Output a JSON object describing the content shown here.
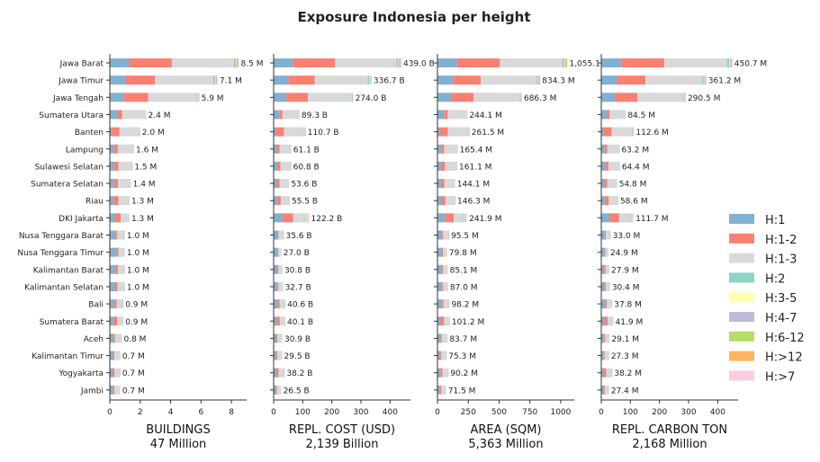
{
  "chart_data": {
    "type": "bar",
    "orientation": "horizontal",
    "stacked": true,
    "title": "Exposure Indonesia per height",
    "categories": [
      "Jawa Barat",
      "Jawa Timur",
      "Jawa Tengah",
      "Sumatera Utara",
      "Banten",
      "Lampung",
      "Sulawesi Selatan",
      "Sumatera Selatan",
      "Riau",
      "DKI Jakarta",
      "Nusa Tenggara Barat",
      "Nusa Tenggara Timur",
      "Kalimantan Barat",
      "Kalimantan Selatan",
      "Bali",
      "Sumatera Barat",
      "Aceh",
      "Kalimantan Timur",
      "Yogyakarta",
      "Jambi"
    ],
    "legend": {
      "placement": "right",
      "items": [
        {
          "label": "H:1",
          "color": "#80b1d3"
        },
        {
          "label": "H:1-2",
          "color": "#fb8072"
        },
        {
          "label": "H:1-3",
          "color": "#d9d9d9"
        },
        {
          "label": "H:2",
          "color": "#8dd3c7"
        },
        {
          "label": "H:3-5",
          "color": "#ffffb3"
        },
        {
          "label": "H:4-7",
          "color": "#bebada"
        },
        {
          "label": "H:6-12",
          "color": "#b3de69"
        },
        {
          "label": "H:>12",
          "color": "#fdb462"
        },
        {
          "label": "H:>7",
          "color": "#fccde5"
        }
      ]
    },
    "panels": [
      {
        "xlabel": "BUILDINGS",
        "subtitle": "47 Million",
        "xlim": [
          0,
          9
        ],
        "ticks": [
          0,
          2,
          4,
          6,
          8
        ],
        "totals": [
          8.5,
          7.1,
          5.9,
          2.4,
          2.0,
          1.6,
          1.5,
          1.4,
          1.3,
          1.3,
          1.0,
          1.0,
          1.0,
          1.0,
          0.9,
          0.9,
          0.8,
          0.7,
          0.7,
          0.7
        ],
        "total_labels": [
          "8.5 M",
          "7.1 M",
          "5.9 M",
          "2.4 M",
          "2.0 M",
          "1.6 M",
          "1.5 M",
          "1.4 M",
          "1.3 M",
          "1.3 M",
          "1.0 M",
          "1.0 M",
          "1.0 M",
          "1.0 M",
          "0.9 M",
          "0.9 M",
          "0.8 M",
          "0.7 M",
          "0.7 M",
          "0.7 M"
        ]
      },
      {
        "xlabel": "REPL. COST (USD)",
        "subtitle": "2,139 Billion",
        "xlim": [
          0,
          470
        ],
        "ticks": [
          0,
          100,
          200,
          300,
          400
        ],
        "totals": [
          439.0,
          336.7,
          274.0,
          89.3,
          110.7,
          61.1,
          60.8,
          53.6,
          55.5,
          122.2,
          35.6,
          27.0,
          30.8,
          32.7,
          40.6,
          40.1,
          30.9,
          29.5,
          38.2,
          26.5
        ],
        "total_labels": [
          "439.0 B",
          "336.7 B",
          "274.0 B",
          "89.3 B",
          "110.7 B",
          "61.1 B",
          "60.8 B",
          "53.6 B",
          "55.5 B",
          "122.2 B",
          "35.6 B",
          "27.0 B",
          "30.8 B",
          "32.7 B",
          "40.6 B",
          "40.1 B",
          "30.9 B",
          "29.5 B",
          "38.2 B",
          "26.5 B"
        ]
      },
      {
        "xlabel": "AREA (SQM)",
        "subtitle": "5,363 Million",
        "xlim": [
          0,
          1110
        ],
        "ticks": [
          0,
          250,
          500,
          750,
          1000
        ],
        "totals": [
          1055.1,
          834.3,
          686.3,
          244.1,
          261.5,
          165.4,
          161.1,
          144.1,
          146.3,
          241.9,
          95.5,
          79.8,
          85.1,
          87.0,
          98.2,
          101.2,
          83.7,
          75.3,
          90.2,
          71.5
        ],
        "total_labels": [
          "1,055.1",
          "834.3 M",
          "686.3 M",
          "244.1 M",
          "261.5 M",
          "165.4 M",
          "161.1 M",
          "144.1 M",
          "146.3 M",
          "241.9 M",
          "95.5 M",
          "79.8 M",
          "85.1 M",
          "87.0 M",
          "98.2 M",
          "101.2 M",
          "83.7 M",
          "75.3 M",
          "90.2 M",
          "71.5 M"
        ]
      },
      {
        "xlabel": "REPL. CARBON TON",
        "subtitle": "2,168 Million",
        "xlim": [
          0,
          470
        ],
        "ticks": [
          0,
          100,
          200,
          300,
          400
        ],
        "totals": [
          450.7,
          361.2,
          290.5,
          84.5,
          112.6,
          63.2,
          64.4,
          54.8,
          58.6,
          111.7,
          33.0,
          24.9,
          27.9,
          30.4,
          37.8,
          41.9,
          29.1,
          27.3,
          38.2,
          27.4
        ],
        "total_labels": [
          "450.7 M",
          "361.2 M",
          "290.5 M",
          "84.5 M",
          "112.6 M",
          "63.2 M",
          "64.4 M",
          "54.8 M",
          "58.6 M",
          "111.7 M",
          "33.0 M",
          "24.9 M",
          "27.9 M",
          "30.4 M",
          "37.8 M",
          "41.9 M",
          "29.1 M",
          "27.3 M",
          "38.2 M",
          "27.4 M"
        ]
      }
    ],
    "share_profiles": [
      [
        0.15,
        0.33,
        0.48,
        0.015,
        0.005,
        0.01,
        0.004,
        0.004,
        0.002
      ],
      [
        0.15,
        0.27,
        0.54,
        0.015,
        0.005,
        0.01,
        0.004,
        0.004,
        0.002
      ],
      [
        0.16,
        0.27,
        0.54,
        0.01,
        0.005,
        0.01,
        0.003,
        0.003,
        0.002
      ],
      [
        0.22,
        0.12,
        0.63,
        0.01,
        0.005,
        0.01,
        0.002,
        0.002,
        0.001
      ],
      [
        0.07,
        0.25,
        0.62,
        0.02,
        0.01,
        0.02,
        0.005,
        0.003,
        0.002
      ],
      [
        0.18,
        0.15,
        0.63,
        0.01,
        0.005,
        0.015,
        0.004,
        0.004,
        0.002
      ],
      [
        0.2,
        0.18,
        0.57,
        0.02,
        0.005,
        0.015,
        0.004,
        0.004,
        0.002
      ],
      [
        0.2,
        0.18,
        0.59,
        0.01,
        0.005,
        0.01,
        0.002,
        0.002,
        0.001
      ],
      [
        0.2,
        0.24,
        0.51,
        0.02,
        0.005,
        0.015,
        0.004,
        0.004,
        0.002
      ],
      [
        0.25,
        0.3,
        0.3,
        0.03,
        0.02,
        0.02,
        0.01,
        0.01,
        0.06
      ],
      [
        0.35,
        0.12,
        0.45,
        0.04,
        0.01,
        0.02,
        0.005,
        0.003,
        0.002
      ],
      [
        0.45,
        0.12,
        0.4,
        0.01,
        0.005,
        0.01,
        0.002,
        0.002,
        0.001
      ],
      [
        0.35,
        0.18,
        0.43,
        0.02,
        0.005,
        0.01,
        0.002,
        0.002,
        0.001
      ],
      [
        0.35,
        0.15,
        0.45,
        0.03,
        0.005,
        0.01,
        0.002,
        0.002,
        0.001
      ],
      [
        0.35,
        0.15,
        0.42,
        0.04,
        0.01,
        0.02,
        0.005,
        0.003,
        0.002
      ],
      [
        0.25,
        0.28,
        0.42,
        0.02,
        0.005,
        0.02,
        0.003,
        0.002,
        0.0
      ],
      [
        0.3,
        0.12,
        0.52,
        0.02,
        0.02,
        0.01,
        0.005,
        0.003,
        0.002
      ],
      [
        0.3,
        0.12,
        0.5,
        0.03,
        0.01,
        0.03,
        0.005,
        0.003,
        0.002
      ],
      [
        0.25,
        0.2,
        0.48,
        0.02,
        0.005,
        0.04,
        0.003,
        0.002,
        0.0
      ],
      [
        0.28,
        0.15,
        0.5,
        0.02,
        0.03,
        0.01,
        0.005,
        0.003,
        0.002
      ]
    ]
  }
}
